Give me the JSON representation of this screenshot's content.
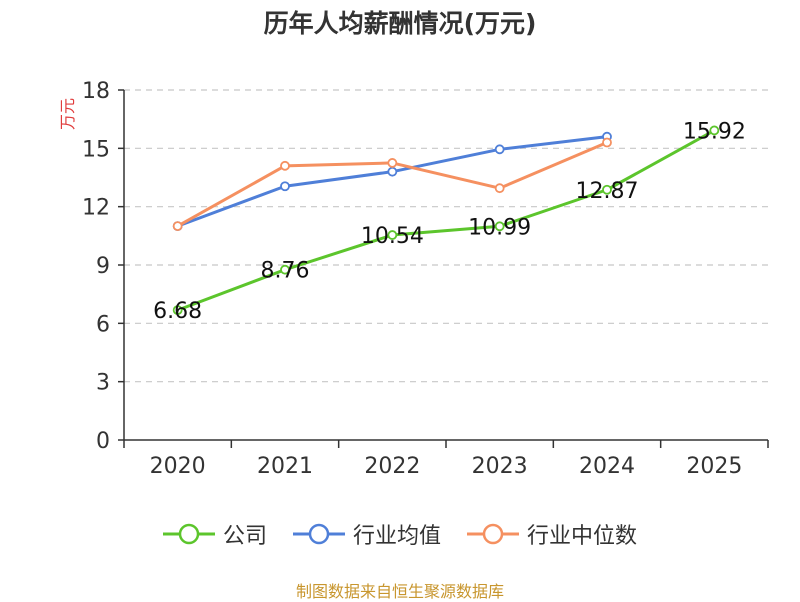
{
  "chart_data": {
    "type": "line",
    "title": "历年人均薪酬情况(万元)",
    "ylabel": "万元",
    "xlabel": "",
    "categories": [
      "2020",
      "2021",
      "2022",
      "2023",
      "2024",
      "2025"
    ],
    "ylim": [
      0,
      18
    ],
    "yticks": [
      0,
      3,
      6,
      9,
      12,
      15,
      18
    ],
    "grid": true,
    "series": [
      {
        "name": "公司",
        "color": "#5cc52c",
        "labeled": true,
        "values": [
          6.68,
          8.76,
          10.54,
          10.99,
          12.87,
          15.92
        ],
        "labels": [
          "6.68",
          "8.76",
          "10.54",
          "10.99",
          "12.87",
          "15.92"
        ]
      },
      {
        "name": "行业均值",
        "color": "#4f7fd8",
        "labeled": false,
        "values": [
          11.0,
          13.05,
          13.8,
          14.95,
          15.6,
          null
        ]
      },
      {
        "name": "行业中位数",
        "color": "#f59060",
        "labeled": false,
        "values": [
          11.0,
          14.1,
          14.25,
          12.95,
          15.3,
          null
        ]
      }
    ],
    "legend_position": "bottom"
  },
  "source_note": "制图数据来自恒生聚源数据库"
}
